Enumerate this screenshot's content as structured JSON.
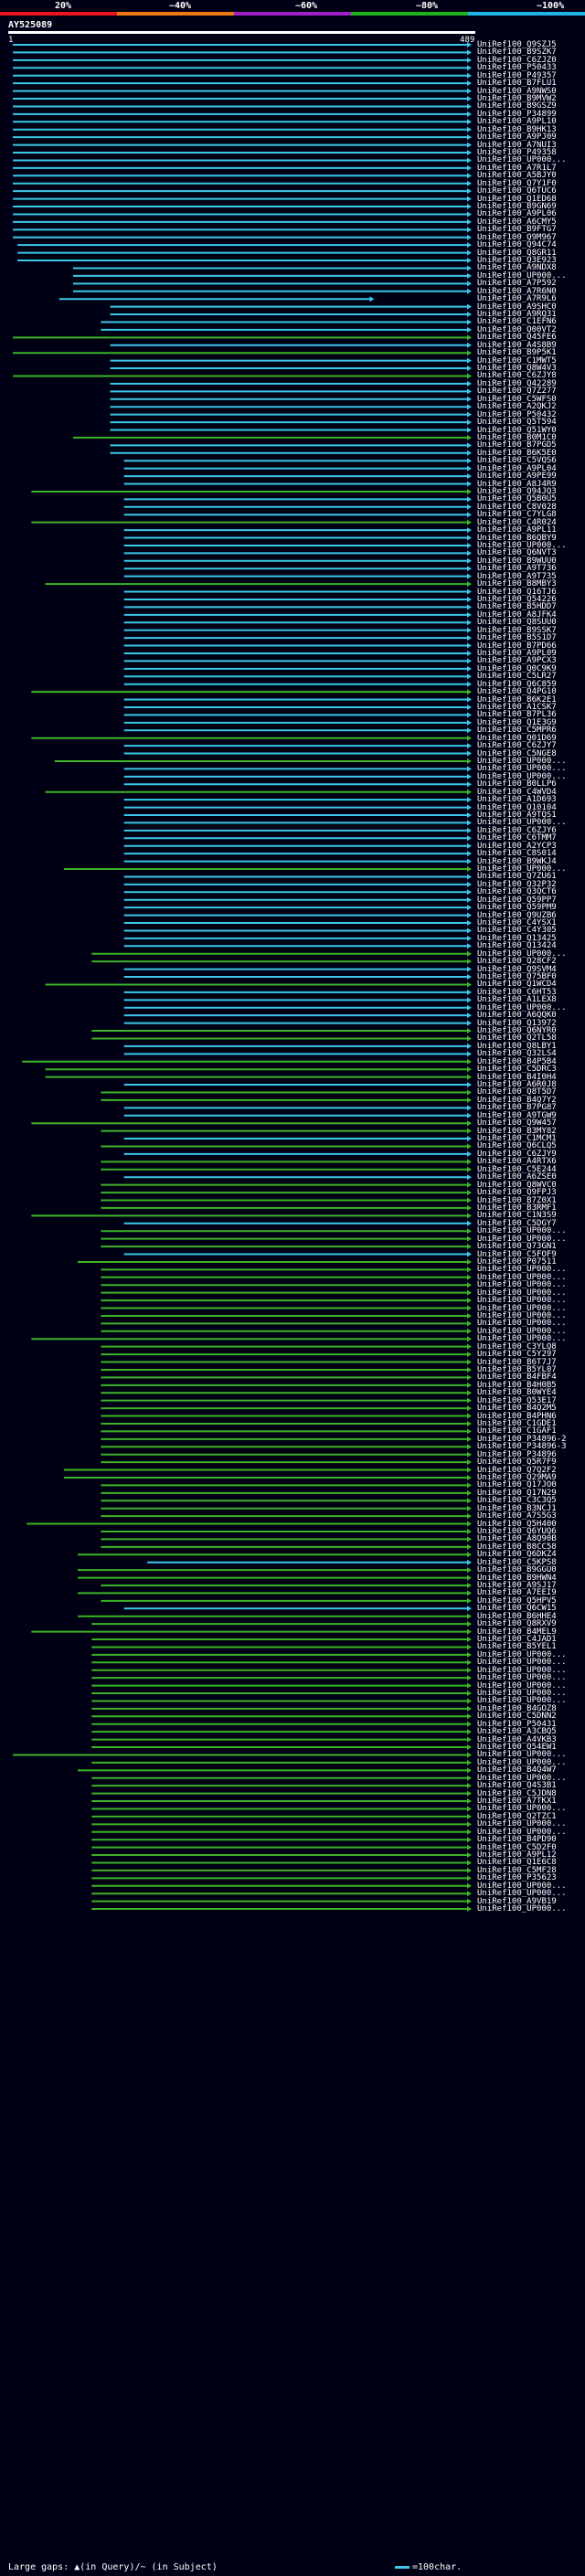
{
  "scale": {
    "labels": [
      "20%",
      "~40%",
      "~60%",
      "~80%",
      "~100%"
    ],
    "colors": [
      "#e8141e",
      "#f07814",
      "#a020c8",
      "#20b020",
      "#1eb4e6"
    ]
  },
  "query": {
    "name": "AY525089",
    "start": "1",
    "end": "489"
  },
  "colors": {
    "blue": "#3cc8e8",
    "green": "#3cb428",
    "gap": "#ffef00"
  },
  "hits": [
    {
      "label": "UniRef100_Q9SZJ5",
      "c": "b",
      "s": 0.01
    },
    {
      "label": "UniRef100_B9SZK7",
      "c": "b",
      "s": 0.01
    },
    {
      "label": "UniRef100_C6ZJZ0",
      "c": "b",
      "s": 0.01
    },
    {
      "label": "UniRef100_P50433",
      "c": "b",
      "s": 0.01
    },
    {
      "label": "UniRef100_P49357",
      "c": "b",
      "s": 0.01
    },
    {
      "label": "UniRef100_B7FLU1",
      "c": "b",
      "s": 0.01
    },
    {
      "label": "UniRef100_A9NWS0",
      "c": "b",
      "s": 0.01
    },
    {
      "label": "UniRef100_B9MVW2",
      "c": "b",
      "s": 0.01
    },
    {
      "label": "UniRef100_B9GSZ9",
      "c": "b",
      "s": 0.01
    },
    {
      "label": "UniRef100_P34899",
      "c": "b",
      "s": 0.01
    },
    {
      "label": "UniRef100_A9PL10",
      "c": "b",
      "s": 0.01
    },
    {
      "label": "UniRef100_B9HK13",
      "c": "b",
      "s": 0.01
    },
    {
      "label": "UniRef100_A9PJ09",
      "c": "b",
      "s": 0.01
    },
    {
      "label": "UniRef100_A7NUI3",
      "c": "b",
      "s": 0.01
    },
    {
      "label": "UniRef100_P49358",
      "c": "b",
      "s": 0.01
    },
    {
      "label": "UniRef100_UP000...",
      "c": "b",
      "s": 0.01
    },
    {
      "label": "UniRef100_A7R1L7",
      "c": "b",
      "s": 0.01
    },
    {
      "label": "UniRef100_A5BJY0",
      "c": "b",
      "s": 0.01
    },
    {
      "label": "UniRef100_Q7Y1F0",
      "c": "b",
      "s": 0.01
    },
    {
      "label": "UniRef100_Q6TUC6",
      "c": "b",
      "s": 0.01
    },
    {
      "label": "UniRef100_Q1ED68",
      "c": "b",
      "s": 0.01
    },
    {
      "label": "UniRef100_B9GN69",
      "c": "b",
      "s": 0.01
    },
    {
      "label": "UniRef100_A9PL06",
      "c": "b",
      "s": 0.01
    },
    {
      "label": "UniRef100_A6CMY5",
      "c": "b",
      "s": 0.01
    },
    {
      "label": "UniRef100_B9FTG7",
      "c": "b",
      "s": 0.01
    },
    {
      "label": "UniRef100_Q9M967",
      "c": "b",
      "s": 0.01
    },
    {
      "label": "UniRef100_Q94C74",
      "c": "b",
      "s": 0.02
    },
    {
      "label": "UniRef100_Q8GR11",
      "c": "b",
      "s": 0.02
    },
    {
      "label": "UniRef100_Q3E923",
      "c": "b",
      "s": 0.02
    },
    {
      "label": "UniRef100_A9NDX8",
      "c": "b",
      "s": 0.14
    },
    {
      "label": "UniRef100_UP000...",
      "c": "b",
      "s": 0.14
    },
    {
      "label": "UniRef100_A7P592",
      "c": "b",
      "s": 0.14
    },
    {
      "label": "UniRef100_A7R6N0",
      "c": "b",
      "s": 0.14
    },
    {
      "label": "UniRef100_A7R9L6",
      "c": "b",
      "s": 0.11,
      "e": 0.79
    },
    {
      "label": "UniRef100_A9SHC0",
      "c": "b",
      "s": 0.22
    },
    {
      "label": "UniRef100_A9RQ31",
      "c": "b",
      "s": 0.22
    },
    {
      "label": "UniRef100_C1EFN6",
      "c": "b",
      "s": 0.2
    },
    {
      "label": "UniRef100_Q00VT2",
      "c": "b",
      "s": 0.2
    },
    {
      "label": "UniRef100_Q45FE6",
      "c": "g",
      "s": 0.01
    },
    {
      "label": "UniRef100_A4S8B9",
      "c": "b",
      "s": 0.22
    },
    {
      "label": "UniRef100_B9P5K1",
      "c": "g",
      "s": 0.01
    },
    {
      "label": "UniRef100_C1MWT5",
      "c": "b",
      "s": 0.22
    },
    {
      "label": "UniRef100_Q8W4V3",
      "c": "b",
      "s": 0.22
    },
    {
      "label": "UniRef100_C6ZJY8",
      "c": "g",
      "s": 0.01
    },
    {
      "label": "UniRef100_Q42289",
      "c": "b",
      "s": 0.22
    },
    {
      "label": "UniRef100_Q7Z277",
      "c": "b",
      "s": 0.22
    },
    {
      "label": "UniRef100_C5WFS0",
      "c": "b",
      "s": 0.22
    },
    {
      "label": "UniRef100_A2QKJ2",
      "c": "b",
      "s": 0.22
    },
    {
      "label": "UniRef100_P50432",
      "c": "b",
      "s": 0.22
    },
    {
      "label": "UniRef100_Q5T594",
      "c": "b",
      "s": 0.22
    },
    {
      "label": "UniRef100_Q51WY0",
      "c": "b",
      "s": 0.22
    },
    {
      "label": "UniRef100_B0M1C0",
      "c": "g",
      "s": 0.14
    },
    {
      "label": "UniRef100_B7PGD5",
      "c": "b",
      "s": 0.22
    },
    {
      "label": "UniRef100_B6K5E0",
      "c": "b",
      "s": 0.22
    },
    {
      "label": "UniRef100_C5VQS6",
      "c": "b",
      "s": 0.25
    },
    {
      "label": "UniRef100_A9PL04",
      "c": "b",
      "s": 0.25
    },
    {
      "label": "UniRef100_A9PE99",
      "c": "b",
      "s": 0.25
    },
    {
      "label": "UniRef100_A8J4R9",
      "c": "b",
      "s": 0.25
    },
    {
      "label": "UniRef100_Q94JQ3",
      "c": "g",
      "s": 0.05
    },
    {
      "label": "UniRef100_Q5B0U5",
      "c": "b",
      "s": 0.25
    },
    {
      "label": "UniRef100_C8V028",
      "c": "b",
      "s": 0.25
    },
    {
      "label": "UniRef100_C7YLG8",
      "c": "b",
      "s": 0.25
    },
    {
      "label": "UniRef100_C4R024",
      "c": "g",
      "s": 0.05
    },
    {
      "label": "UniRef100_A9PL11",
      "c": "b",
      "s": 0.25
    },
    {
      "label": "UniRef100_B6QBY9",
      "c": "b",
      "s": 0.25
    },
    {
      "label": "UniRef100_UP000...",
      "c": "b",
      "s": 0.25
    },
    {
      "label": "UniRef100_Q6NVT3",
      "c": "b",
      "s": 0.25
    },
    {
      "label": "UniRef100_B9WUU0",
      "c": "b",
      "s": 0.25
    },
    {
      "label": "UniRef100_A9T736",
      "c": "b",
      "s": 0.25
    },
    {
      "label": "UniRef100_A9T735",
      "c": "b",
      "s": 0.25
    },
    {
      "label": "UniRef100_B8MBY3",
      "c": "g",
      "s": 0.08
    },
    {
      "label": "UniRef100_Q16TJ6",
      "c": "b",
      "s": 0.25
    },
    {
      "label": "UniRef100_Q54226",
      "c": "b",
      "s": 0.25
    },
    {
      "label": "UniRef100_B5HDD7",
      "c": "b",
      "s": 0.25
    },
    {
      "label": "UniRef100_A8JFK4",
      "c": "b",
      "s": 0.25
    },
    {
      "label": "UniRef100_Q8SUU0",
      "c": "b",
      "s": 0.25
    },
    {
      "label": "UniRef100_B9SSK7",
      "c": "b",
      "s": 0.25
    },
    {
      "label": "UniRef100_B5S1D7",
      "c": "b",
      "s": 0.25
    },
    {
      "label": "UniRef100_B7PD66",
      "c": "b",
      "s": 0.25
    },
    {
      "label": "UniRef100_A9PL09",
      "c": "b",
      "s": 0.25
    },
    {
      "label": "UniRef100_A9PCX3",
      "c": "b",
      "s": 0.25
    },
    {
      "label": "UniRef100_Q0C9K9",
      "c": "b",
      "s": 0.25
    },
    {
      "label": "UniRef100_C5LR27",
      "c": "b",
      "s": 0.25
    },
    {
      "label": "UniRef100_Q6C859",
      "c": "b",
      "s": 0.25
    },
    {
      "label": "UniRef100_Q4PG10",
      "c": "g",
      "s": 0.05
    },
    {
      "label": "UniRef100_B6K2E1",
      "c": "b",
      "s": 0.25
    },
    {
      "label": "UniRef100_A1CSK7",
      "c": "b",
      "s": 0.25
    },
    {
      "label": "UniRef100_B7PL36",
      "c": "b",
      "s": 0.25
    },
    {
      "label": "UniRef100_Q1E3G9",
      "c": "b",
      "s": 0.25
    },
    {
      "label": "UniRef100_C5MPR6",
      "c": "b",
      "s": 0.25
    },
    {
      "label": "UniRef100_Q01D69",
      "c": "g",
      "s": 0.05
    },
    {
      "label": "UniRef100_C6ZJY7",
      "c": "b",
      "s": 0.25
    },
    {
      "label": "UniRef100_C5NGE8",
      "c": "b",
      "s": 0.25
    },
    {
      "label": "UniRef100_UP000...",
      "c": "g",
      "s": 0.1
    },
    {
      "label": "UniRef100_UP000...",
      "c": "b",
      "s": 0.25
    },
    {
      "label": "UniRef100_UP000...",
      "c": "b",
      "s": 0.25
    },
    {
      "label": "UniRef100_B0LLP6",
      "c": "b",
      "s": 0.25
    },
    {
      "label": "UniRef100_C4WVD4",
      "c": "g",
      "s": 0.08
    },
    {
      "label": "UniRef100_A1D693",
      "c": "b",
      "s": 0.25
    },
    {
      "label": "UniRef100_Q10104",
      "c": "b",
      "s": 0.25
    },
    {
      "label": "UniRef100_A9TQS1",
      "c": "b",
      "s": 0.25
    },
    {
      "label": "UniRef100_UP000...",
      "c": "b",
      "s": 0.25
    },
    {
      "label": "UniRef100_C6ZJY6",
      "c": "b",
      "s": 0.25
    },
    {
      "label": "UniRef100_C6TMM7",
      "c": "b",
      "s": 0.25
    },
    {
      "label": "UniRef100_A2YCP3",
      "c": "b",
      "s": 0.25
    },
    {
      "label": "UniRef100_C8S014",
      "c": "b",
      "s": 0.25
    },
    {
      "label": "UniRef100_B9WKJ4",
      "c": "b",
      "s": 0.25
    },
    {
      "label": "UniRef100_UP000...",
      "c": "g",
      "s": 0.12
    },
    {
      "label": "UniRef100_Q7ZU61",
      "c": "b",
      "s": 0.25
    },
    {
      "label": "UniRef100_Q32P32",
      "c": "b",
      "s": 0.25
    },
    {
      "label": "UniRef100_Q3QCT6",
      "c": "b",
      "s": 0.25
    },
    {
      "label": "UniRef100_Q59PP7",
      "c": "b",
      "s": 0.25
    },
    {
      "label": "UniRef100_Q59PM9",
      "c": "b",
      "s": 0.25
    },
    {
      "label": "UniRef100_Q9UZB6",
      "c": "b",
      "s": 0.25
    },
    {
      "label": "UniRef100_C4YSX1",
      "c": "b",
      "s": 0.25
    },
    {
      "label": "UniRef100_C4Y305",
      "c": "b",
      "s": 0.25
    },
    {
      "label": "UniRef100_Q13425",
      "c": "b",
      "s": 0.25
    },
    {
      "label": "UniRef100_Q13424",
      "c": "b",
      "s": 0.25
    },
    {
      "label": "UniRef100_UP000...",
      "c": "g",
      "s": 0.18
    },
    {
      "label": "UniRef100_Q28CF2",
      "c": "g",
      "s": 0.18
    },
    {
      "label": "UniRef100_Q9SVM4",
      "c": "b",
      "s": 0.25
    },
    {
      "label": "UniRef100_Q75BF0",
      "c": "b",
      "s": 0.25
    },
    {
      "label": "UniRef100_Q1WCD4",
      "c": "g",
      "s": 0.08
    },
    {
      "label": "UniRef100_C6HT53",
      "c": "b",
      "s": 0.25
    },
    {
      "label": "UniRef100_A1LEX8",
      "c": "b",
      "s": 0.25
    },
    {
      "label": "UniRef100_UP000...",
      "c": "b",
      "s": 0.25
    },
    {
      "label": "UniRef100_A6QQK0",
      "c": "b",
      "s": 0.25
    },
    {
      "label": "UniRef100_Q13972",
      "c": "b",
      "s": 0.25
    },
    {
      "label": "UniRef100_Q6NYR0",
      "c": "g",
      "s": 0.18
    },
    {
      "label": "UniRef100_Q2TL58",
      "c": "g",
      "s": 0.18
    },
    {
      "label": "UniRef100_Q8LBY1",
      "c": "b",
      "s": 0.25
    },
    {
      "label": "UniRef100_Q32LS4",
      "c": "b",
      "s": 0.25
    },
    {
      "label": "UniRef100_B4P5B4",
      "c": "g",
      "s": 0.03
    },
    {
      "label": "UniRef100_C5DRC3",
      "c": "g",
      "s": 0.08
    },
    {
      "label": "UniRef100_B4I0H4",
      "c": "g",
      "s": 0.08
    },
    {
      "label": "UniRef100_A6R0J8",
      "c": "b",
      "s": 0.25
    },
    {
      "label": "UniRef100_Q8T5D7",
      "c": "g",
      "s": 0.2
    },
    {
      "label": "UniRef100_B4Q7Y2",
      "c": "g",
      "s": 0.2
    },
    {
      "label": "UniRef100_B7PG87",
      "c": "b",
      "s": 0.25
    },
    {
      "label": "UniRef100_A9TGW9",
      "c": "b",
      "s": 0.25
    },
    {
      "label": "UniRef100_Q9W457",
      "c": "g",
      "s": 0.05
    },
    {
      "label": "UniRef100_B3MY82",
      "c": "g",
      "s": 0.2
    },
    {
      "label": "UniRef100_C1MCM1",
      "c": "b",
      "s": 0.25
    },
    {
      "label": "UniRef100_Q6CLQ5",
      "c": "g",
      "s": 0.2
    },
    {
      "label": "UniRef100_C6ZJY9",
      "c": "b",
      "s": 0.25
    },
    {
      "label": "UniRef100_A4RTX6",
      "c": "g",
      "s": 0.2
    },
    {
      "label": "UniRef100_C5E244",
      "c": "g",
      "s": 0.2
    },
    {
      "label": "UniRef100_A6ZSE0",
      "c": "b",
      "s": 0.25
    },
    {
      "label": "UniRef100_Q8WVC0",
      "c": "g",
      "s": 0.2
    },
    {
      "label": "UniRef100_Q9FPJ3",
      "c": "g",
      "s": 0.2
    },
    {
      "label": "UniRef100_B7Z0X1",
      "c": "g",
      "s": 0.2
    },
    {
      "label": "UniRef100_B3RMF1",
      "c": "g",
      "s": 0.2
    },
    {
      "label": "UniRef100_C1N3S9",
      "c": "g",
      "s": 0.05
    },
    {
      "label": "UniRef100_C5DGY7",
      "c": "b",
      "s": 0.25
    },
    {
      "label": "UniRef100_UP000...",
      "c": "g",
      "s": 0.2
    },
    {
      "label": "UniRef100_UP000...",
      "c": "g",
      "s": 0.2
    },
    {
      "label": "UniRef100_Q73GN1",
      "c": "g",
      "s": 0.2
    },
    {
      "label": "UniRef100_C5FOF9",
      "c": "b",
      "s": 0.25
    },
    {
      "label": "UniRef100_P07511",
      "c": "g",
      "s": 0.15
    },
    {
      "label": "UniRef100_UP000...",
      "c": "g",
      "s": 0.2
    },
    {
      "label": "UniRef100_UP000...",
      "c": "g",
      "s": 0.2
    },
    {
      "label": "UniRef100_UP000...",
      "c": "g",
      "s": 0.2
    },
    {
      "label": "UniRef100_UP000...",
      "c": "g",
      "s": 0.2
    },
    {
      "label": "UniRef100_UP000...",
      "c": "g",
      "s": 0.2
    },
    {
      "label": "UniRef100_UP000...",
      "c": "g",
      "s": 0.2
    },
    {
      "label": "UniRef100_UP000...",
      "c": "g",
      "s": 0.2
    },
    {
      "label": "UniRef100_UP000...",
      "c": "g",
      "s": 0.2
    },
    {
      "label": "UniRef100_UP000...",
      "c": "g",
      "s": 0.2
    },
    {
      "label": "UniRef100_UP000...",
      "c": "g",
      "s": 0.05
    },
    {
      "label": "UniRef100_C3YLQ8",
      "c": "g",
      "s": 0.2
    },
    {
      "label": "UniRef100_C5Y297",
      "c": "g",
      "s": 0.2
    },
    {
      "label": "UniRef100_B6T7J7",
      "c": "g",
      "s": 0.2
    },
    {
      "label": "UniRef100_B5YL07",
      "c": "g",
      "s": 0.2
    },
    {
      "label": "UniRef100_B4FBF4",
      "c": "g",
      "s": 0.2
    },
    {
      "label": "UniRef100_B4H0B5",
      "c": "g",
      "s": 0.2
    },
    {
      "label": "UniRef100_B0WYE4",
      "c": "g",
      "s": 0.2
    },
    {
      "label": "UniRef100_Q53E17",
      "c": "g",
      "s": 0.2
    },
    {
      "label": "UniRef100_B4Q2M5",
      "c": "g",
      "s": 0.2
    },
    {
      "label": "UniRef100_B4PHN6",
      "c": "g",
      "s": 0.2
    },
    {
      "label": "UniRef100_C1GDE1",
      "c": "g",
      "s": 0.2
    },
    {
      "label": "UniRef100_C1GAF1",
      "c": "g",
      "s": 0.2
    },
    {
      "label": "UniRef100_P34896-2",
      "c": "g",
      "s": 0.2
    },
    {
      "label": "UniRef100_P34896-3",
      "c": "g",
      "s": 0.2
    },
    {
      "label": "UniRef100_P34896",
      "c": "g",
      "s": 0.2
    },
    {
      "label": "UniRef100_Q5R7F9",
      "c": "g",
      "s": 0.2
    },
    {
      "label": "UniRef100_Q7Q2F2",
      "c": "g",
      "s": 0.12
    },
    {
      "label": "UniRef100_Q29MA9",
      "c": "g",
      "s": 0.12
    },
    {
      "label": "UniRef100_Q17JO0",
      "c": "g",
      "s": 0.2
    },
    {
      "label": "UniRef100_Q17N29",
      "c": "g",
      "s": 0.2
    },
    {
      "label": "UniRef100_C3C3Q5",
      "c": "g",
      "s": 0.2
    },
    {
      "label": "UniRef100_B3NCJ1",
      "c": "g",
      "s": 0.2
    },
    {
      "label": "UniRef100_A7S5G3",
      "c": "g",
      "s": 0.2
    },
    {
      "label": "UniRef100_Q5H400",
      "c": "g",
      "s": 0.04
    },
    {
      "label": "UniRef100_Q6YUQ6",
      "c": "g",
      "s": 0.2
    },
    {
      "label": "UniRef100_A8Q90B",
      "c": "g",
      "s": 0.2
    },
    {
      "label": "UniRef100_B8CC58",
      "c": "g",
      "s": 0.2
    },
    {
      "label": "UniRef100_Q6DKZ4",
      "c": "g",
      "s": 0.15
    },
    {
      "label": "UniRef100_C5KPS8",
      "c": "b",
      "s": 0.3
    },
    {
      "label": "UniRef100_B9GGU0",
      "c": "g",
      "s": 0.15
    },
    {
      "label": "UniRef100_B9HWN4",
      "c": "g",
      "s": 0.15
    },
    {
      "label": "UniRef100_A9SJ17",
      "c": "g",
      "s": 0.2
    },
    {
      "label": "UniRef100_A7EEI9",
      "c": "g",
      "s": 0.15
    },
    {
      "label": "UniRef100_Q5HPV5",
      "c": "g",
      "s": 0.2
    },
    {
      "label": "UniRef100_Q6CW15",
      "c": "b",
      "s": 0.25
    },
    {
      "label": "UniRef100_B6HHE4",
      "c": "g",
      "s": 0.15
    },
    {
      "label": "UniRef100_Q8RXV9",
      "c": "g",
      "s": 0.18
    },
    {
      "label": "UniRef100_B4MEL9",
      "c": "g",
      "s": 0.05
    },
    {
      "label": "UniRef100_C4JAD1",
      "c": "g",
      "s": 0.18
    },
    {
      "label": "UniRef100_B5YEL1",
      "c": "g",
      "s": 0.18
    },
    {
      "label": "UniRef100_UP000...",
      "c": "g",
      "s": 0.18
    },
    {
      "label": "UniRef100_UP000...",
      "c": "g",
      "s": 0.18
    },
    {
      "label": "UniRef100_UP000...",
      "c": "g",
      "s": 0.18
    },
    {
      "label": "UniRef100_UP000...",
      "c": "g",
      "s": 0.18
    },
    {
      "label": "UniRef100_UP000...",
      "c": "g",
      "s": 0.18
    },
    {
      "label": "UniRef100_UP000...",
      "c": "g",
      "s": 0.18
    },
    {
      "label": "UniRef100_UP000...",
      "c": "g",
      "s": 0.18
    },
    {
      "label": "UniRef100_B4GOZ8",
      "c": "g",
      "s": 0.18
    },
    {
      "label": "UniRef100_C5DNN2",
      "c": "g",
      "s": 0.18
    },
    {
      "label": "UniRef100_P50431",
      "c": "g",
      "s": 0.18
    },
    {
      "label": "UniRef100_A3CBQ5",
      "c": "g",
      "s": 0.18
    },
    {
      "label": "UniRef100_A4VKB3",
      "c": "g",
      "s": 0.18
    },
    {
      "label": "UniRef100_Q54EW1",
      "c": "g",
      "s": 0.18
    },
    {
      "label": "UniRef100_UP000...",
      "c": "g",
      "s": 0.01
    },
    {
      "label": "UniRef100_UP000...",
      "c": "g",
      "s": 0.18
    },
    {
      "label": "UniRef100_B4Q4W7",
      "c": "g",
      "s": 0.15
    },
    {
      "label": "UniRef100_UP000...",
      "c": "g",
      "s": 0.18
    },
    {
      "label": "UniRef100_Q4S3B1",
      "c": "g",
      "s": 0.18
    },
    {
      "label": "UniRef100_C5JDN8",
      "c": "g",
      "s": 0.18
    },
    {
      "label": "UniRef100_A7TKX1",
      "c": "g",
      "s": 0.18
    },
    {
      "label": "UniRef100_UP000...",
      "c": "g",
      "s": 0.18
    },
    {
      "label": "UniRef100_Q2TZC1",
      "c": "g",
      "s": 0.18
    },
    {
      "label": "UniRef100_UP000...",
      "c": "g",
      "s": 0.18
    },
    {
      "label": "UniRef100_UP000...",
      "c": "g",
      "s": 0.18
    },
    {
      "label": "UniRef100_B4PD90",
      "c": "g",
      "s": 0.18
    },
    {
      "label": "UniRef100_C5D2F0",
      "c": "g",
      "s": 0.18
    },
    {
      "label": "UniRef100_A9PL12",
      "c": "g",
      "s": 0.18
    },
    {
      "label": "UniRef100_Q1E6C8",
      "c": "g",
      "s": 0.18
    },
    {
      "label": "UniRef100_C5MF28",
      "c": "g",
      "s": 0.18
    },
    {
      "label": "UniRef100_P35623",
      "c": "g",
      "s": 0.18
    },
    {
      "label": "UniRef100_UP000...",
      "c": "g",
      "s": 0.18
    },
    {
      "label": "UniRef100_UP000...",
      "c": "g",
      "s": 0.18
    },
    {
      "label": "UniRef100_A9VB19",
      "c": "g",
      "s": 0.18
    },
    {
      "label": "UniRef100_UP000...",
      "c": "g",
      "s": 0.18
    }
  ],
  "legend": {
    "left": "Large gaps: ▲(in Query)/~ (in Subject)",
    "right": "=100char."
  }
}
